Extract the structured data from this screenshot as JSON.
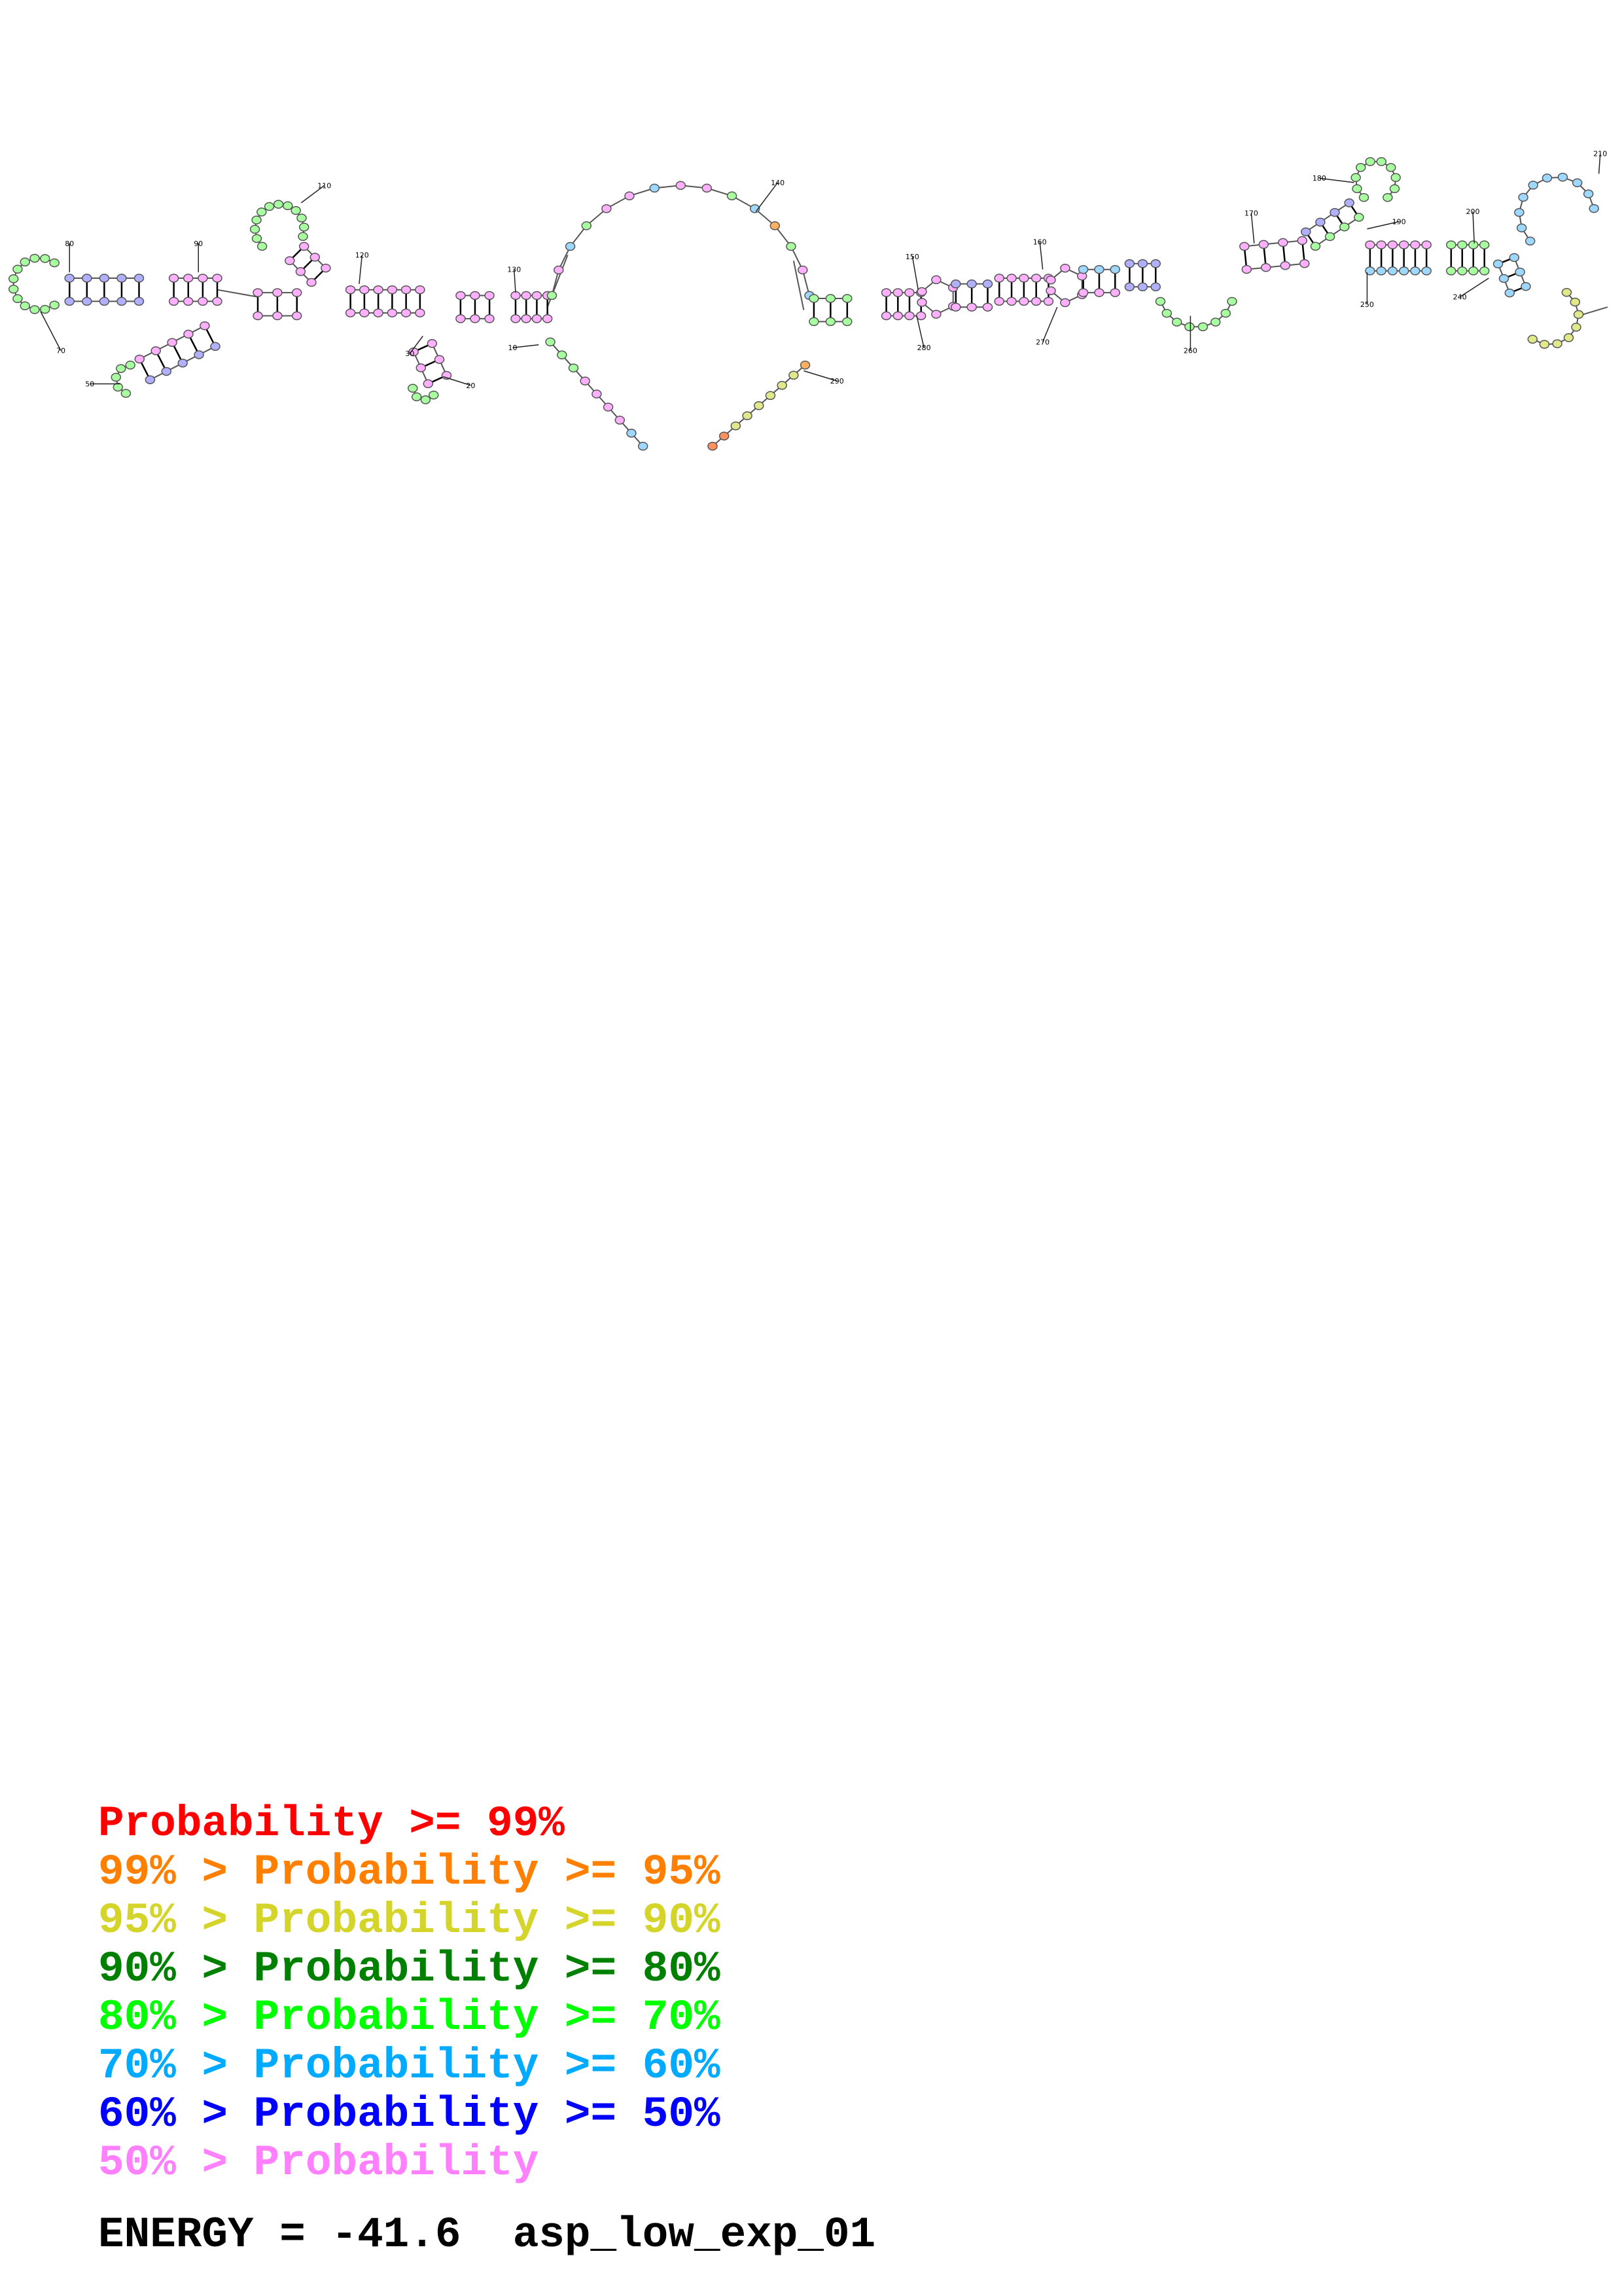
{
  "diagram": {
    "position_labels": [
      "10",
      "20",
      "30",
      "50",
      "70",
      "80",
      "90",
      "110",
      "120",
      "130",
      "140",
      "150",
      "160",
      "170",
      "180",
      "190",
      "200",
      "210",
      "240",
      "250",
      "260",
      "270",
      "280",
      "290"
    ]
  },
  "legend": [
    {
      "text": "Probability >= 99%",
      "color": "#ff0000"
    },
    {
      "text": "99% > Probability >= 95%",
      "color": "#ff7f00"
    },
    {
      "text": "95% > Probability >= 90%",
      "color": "#d4d42a"
    },
    {
      "text": "90% > Probability >= 80%",
      "color": "#008000"
    },
    {
      "text": "80% > Probability >= 70%",
      "color": "#00ff00"
    },
    {
      "text": "70% > Probability >= 60%",
      "color": "#00aaff"
    },
    {
      "text": "60% > Probability >= 50%",
      "color": "#0000ff"
    },
    {
      "text": "50% > Probability",
      "color": "#ff80ff"
    }
  ],
  "energy": {
    "label": "ENERGY = -41.6",
    "name": "asp_low_exp_01"
  }
}
